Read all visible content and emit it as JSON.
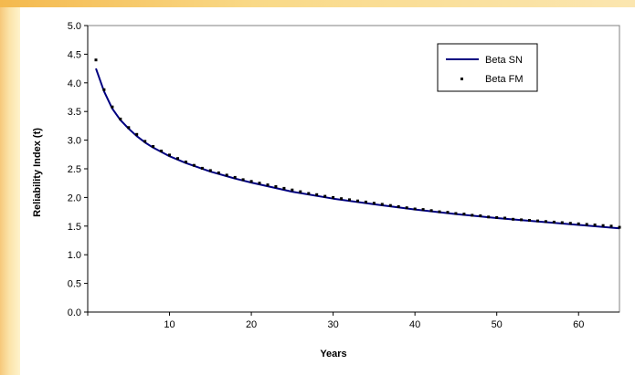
{
  "chart_data": {
    "type": "line",
    "title": "",
    "xlabel": "Years",
    "ylabel": "Reliability Index (t)",
    "xlim": [
      0,
      65
    ],
    "ylim": [
      0.0,
      5.0
    ],
    "x_ticks": [
      "10",
      "20",
      "30",
      "40",
      "50",
      "60"
    ],
    "y_ticks": [
      "0.0",
      "0.5",
      "1.0",
      "1.5",
      "2.0",
      "2.5",
      "3.0",
      "3.5",
      "4.0",
      "4.5",
      "5.0"
    ],
    "grid": false,
    "legend_position": "top-right",
    "series": [
      {
        "name": "Beta SN",
        "style": "line",
        "color": "#000080",
        "x": [
          1,
          2,
          3,
          4,
          5,
          6,
          7,
          8,
          10,
          12,
          15,
          18,
          20,
          25,
          30,
          35,
          40,
          45,
          50,
          55,
          60,
          65
        ],
        "y": [
          4.25,
          3.85,
          3.55,
          3.35,
          3.2,
          3.07,
          2.96,
          2.87,
          2.72,
          2.6,
          2.45,
          2.33,
          2.26,
          2.1,
          1.98,
          1.88,
          1.79,
          1.71,
          1.64,
          1.58,
          1.52,
          1.46
        ]
      },
      {
        "name": "Beta FM",
        "style": "markers",
        "color": "#000000",
        "x": [
          1,
          2,
          3,
          4,
          5,
          6,
          7,
          8,
          9,
          10,
          11,
          12,
          13,
          14,
          15,
          16,
          17,
          18,
          19,
          20,
          21,
          22,
          23,
          24,
          25,
          26,
          27,
          28,
          29,
          30,
          31,
          32,
          33,
          34,
          35,
          36,
          37,
          38,
          39,
          40,
          41,
          42,
          43,
          44,
          45,
          46,
          47,
          48,
          49,
          50,
          51,
          52,
          53,
          54,
          55,
          56,
          57,
          58,
          59,
          60,
          61,
          62,
          63,
          64,
          65
        ],
        "y": [
          4.4,
          3.88,
          3.58,
          3.37,
          3.22,
          3.1,
          2.98,
          2.89,
          2.81,
          2.74,
          2.68,
          2.62,
          2.56,
          2.51,
          2.47,
          2.43,
          2.39,
          2.35,
          2.31,
          2.28,
          2.25,
          2.22,
          2.19,
          2.16,
          2.13,
          2.1,
          2.07,
          2.05,
          2.02,
          2.0,
          1.98,
          1.96,
          1.94,
          1.92,
          1.9,
          1.88,
          1.86,
          1.84,
          1.82,
          1.8,
          1.79,
          1.77,
          1.75,
          1.74,
          1.72,
          1.71,
          1.69,
          1.68,
          1.66,
          1.65,
          1.64,
          1.62,
          1.61,
          1.6,
          1.59,
          1.58,
          1.57,
          1.56,
          1.55,
          1.54,
          1.53,
          1.52,
          1.51,
          1.5,
          1.48
        ]
      }
    ]
  }
}
